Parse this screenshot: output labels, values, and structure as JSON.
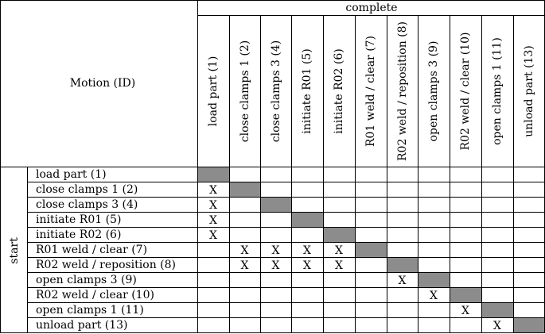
{
  "table": {
    "corner_label": "Motion (ID)",
    "column_group_label": "complete",
    "row_group_label": "start",
    "columns": [
      "load part (1)",
      "close clamps 1 (2)",
      "close clamps 3 (4)",
      "initiate R01 (5)",
      "initiate R02 (6)",
      "R01 weld / clear (7)",
      "R02 weld / reposition (8)",
      "open clamps 3 (9)",
      "R02 weld / clear (10)",
      "open clamps 1 (11)",
      "unload part (13)"
    ],
    "rows": [
      "load part (1)",
      "close clamps 1 (2)",
      "close clamps 3 (4)",
      "initiate R01 (5)",
      "initiate R02 (6)",
      "R01 weld / clear (7)",
      "R02 weld / reposition (8)",
      "open clamps 3 (9)",
      "R02 weld / clear (10)",
      "open clamps 1 (11)",
      "unload part (13)"
    ],
    "mark_symbol": "X",
    "marks": [
      [
        1,
        0
      ],
      [
        2,
        0
      ],
      [
        3,
        0
      ],
      [
        4,
        0
      ],
      [
        5,
        1
      ],
      [
        5,
        2
      ],
      [
        5,
        3
      ],
      [
        5,
        4
      ],
      [
        6,
        1
      ],
      [
        6,
        2
      ],
      [
        6,
        3
      ],
      [
        6,
        4
      ],
      [
        7,
        6
      ],
      [
        8,
        7
      ],
      [
        9,
        8
      ],
      [
        10,
        9
      ]
    ],
    "diagonal_color": "#8c8c8c"
  }
}
